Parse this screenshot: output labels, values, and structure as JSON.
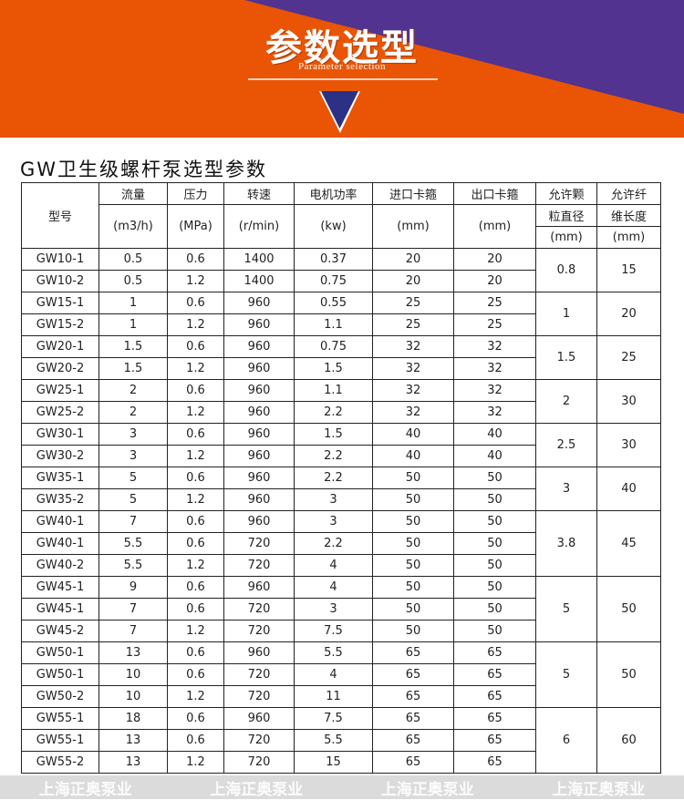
{
  "banner": {
    "title": "参数选型",
    "subtitle": "Parameter selection",
    "colors": {
      "orange": "#e95504",
      "purple": "#52338f",
      "arrow": "#2b3185"
    }
  },
  "table_title": "GW卫生级螺杆泵选型参数",
  "headers": {
    "model": "型号",
    "flow": "流量",
    "flow_unit": "(m3/h)",
    "pressure": "压力",
    "pressure_unit": "(MPa)",
    "speed": "转速",
    "speed_unit": "(r/min)",
    "power": "电机功率",
    "power_unit": "(kw)",
    "inlet": "进口卡箍",
    "inlet_unit": "(mm)",
    "outlet": "出口卡箍",
    "outlet_unit": "(mm)",
    "particle_1": "允许颗",
    "particle_2": "粒直径",
    "particle_unit": "(mm)",
    "fiber_1": "允许纤",
    "fiber_2": "维长度",
    "fiber_unit": "(mm)"
  },
  "rows": [
    [
      "GW10-1",
      "0.5",
      "0.6",
      "1400",
      "0.37",
      "20",
      "20"
    ],
    [
      "GW10-2",
      "0.5",
      "1.2",
      "1400",
      "0.75",
      "20",
      "20"
    ],
    [
      "GW15-1",
      "1",
      "0.6",
      "960",
      "0.55",
      "25",
      "25"
    ],
    [
      "GW15-2",
      "1",
      "1.2",
      "960",
      "1.1",
      "25",
      "25"
    ],
    [
      "GW20-1",
      "1.5",
      "0.6",
      "960",
      "0.75",
      "32",
      "32"
    ],
    [
      "GW20-2",
      "1.5",
      "1.2",
      "960",
      "1.5",
      "32",
      "32"
    ],
    [
      "GW25-1",
      "2",
      "0.6",
      "960",
      "1.1",
      "32",
      "32"
    ],
    [
      "GW25-2",
      "2",
      "1.2",
      "960",
      "2.2",
      "32",
      "32"
    ],
    [
      "GW30-1",
      "3",
      "0.6",
      "960",
      "1.5",
      "40",
      "40"
    ],
    [
      "GW30-2",
      "3",
      "1.2",
      "960",
      "2.2",
      "40",
      "40"
    ],
    [
      "GW35-1",
      "5",
      "0.6",
      "960",
      "2.2",
      "50",
      "50"
    ],
    [
      "GW35-2",
      "5",
      "1.2",
      "960",
      "3",
      "50",
      "50"
    ],
    [
      "GW40-1",
      "7",
      "0.6",
      "960",
      "3",
      "50",
      "50"
    ],
    [
      "GW40-1",
      "5.5",
      "0.6",
      "720",
      "2.2",
      "50",
      "50"
    ],
    [
      "GW40-2",
      "5.5",
      "1.2",
      "720",
      "4",
      "50",
      "50"
    ],
    [
      "GW45-1",
      "9",
      "0.6",
      "960",
      "4",
      "50",
      "50"
    ],
    [
      "GW45-1",
      "7",
      "0.6",
      "720",
      "3",
      "50",
      "50"
    ],
    [
      "GW45-2",
      "7",
      "1.2",
      "720",
      "7.5",
      "50",
      "50"
    ],
    [
      "GW50-1",
      "13",
      "0.6",
      "960",
      "5.5",
      "65",
      "65"
    ],
    [
      "GW50-1",
      "10",
      "0.6",
      "720",
      "4",
      "65",
      "65"
    ],
    [
      "GW50-2",
      "10",
      "1.2",
      "720",
      "11",
      "65",
      "65"
    ],
    [
      "GW55-1",
      "18",
      "0.6",
      "960",
      "7.5",
      "65",
      "65"
    ],
    [
      "GW55-1",
      "13",
      "0.6",
      "720",
      "5.5",
      "65",
      "65"
    ],
    [
      "GW55-2",
      "13",
      "1.2",
      "720",
      "15",
      "65",
      "65"
    ]
  ],
  "groups": [
    {
      "start": 0,
      "span": 2,
      "particle": "0.8",
      "fiber": "15"
    },
    {
      "start": 2,
      "span": 2,
      "particle": "1",
      "fiber": "20"
    },
    {
      "start": 4,
      "span": 2,
      "particle": "1.5",
      "fiber": "25"
    },
    {
      "start": 6,
      "span": 2,
      "particle": "2",
      "fiber": "30"
    },
    {
      "start": 8,
      "span": 2,
      "particle": "2.5",
      "fiber": "30"
    },
    {
      "start": 10,
      "span": 2,
      "particle": "3",
      "fiber": "40"
    },
    {
      "start": 12,
      "span": 3,
      "particle": "3.8",
      "fiber": "45"
    },
    {
      "start": 15,
      "span": 3,
      "particle": "5",
      "fiber": "50"
    },
    {
      "start": 18,
      "span": 3,
      "particle": "5",
      "fiber": "50"
    },
    {
      "start": 21,
      "span": 3,
      "particle": "6",
      "fiber": "60"
    }
  ],
  "watermark": "上海正奥泵业"
}
